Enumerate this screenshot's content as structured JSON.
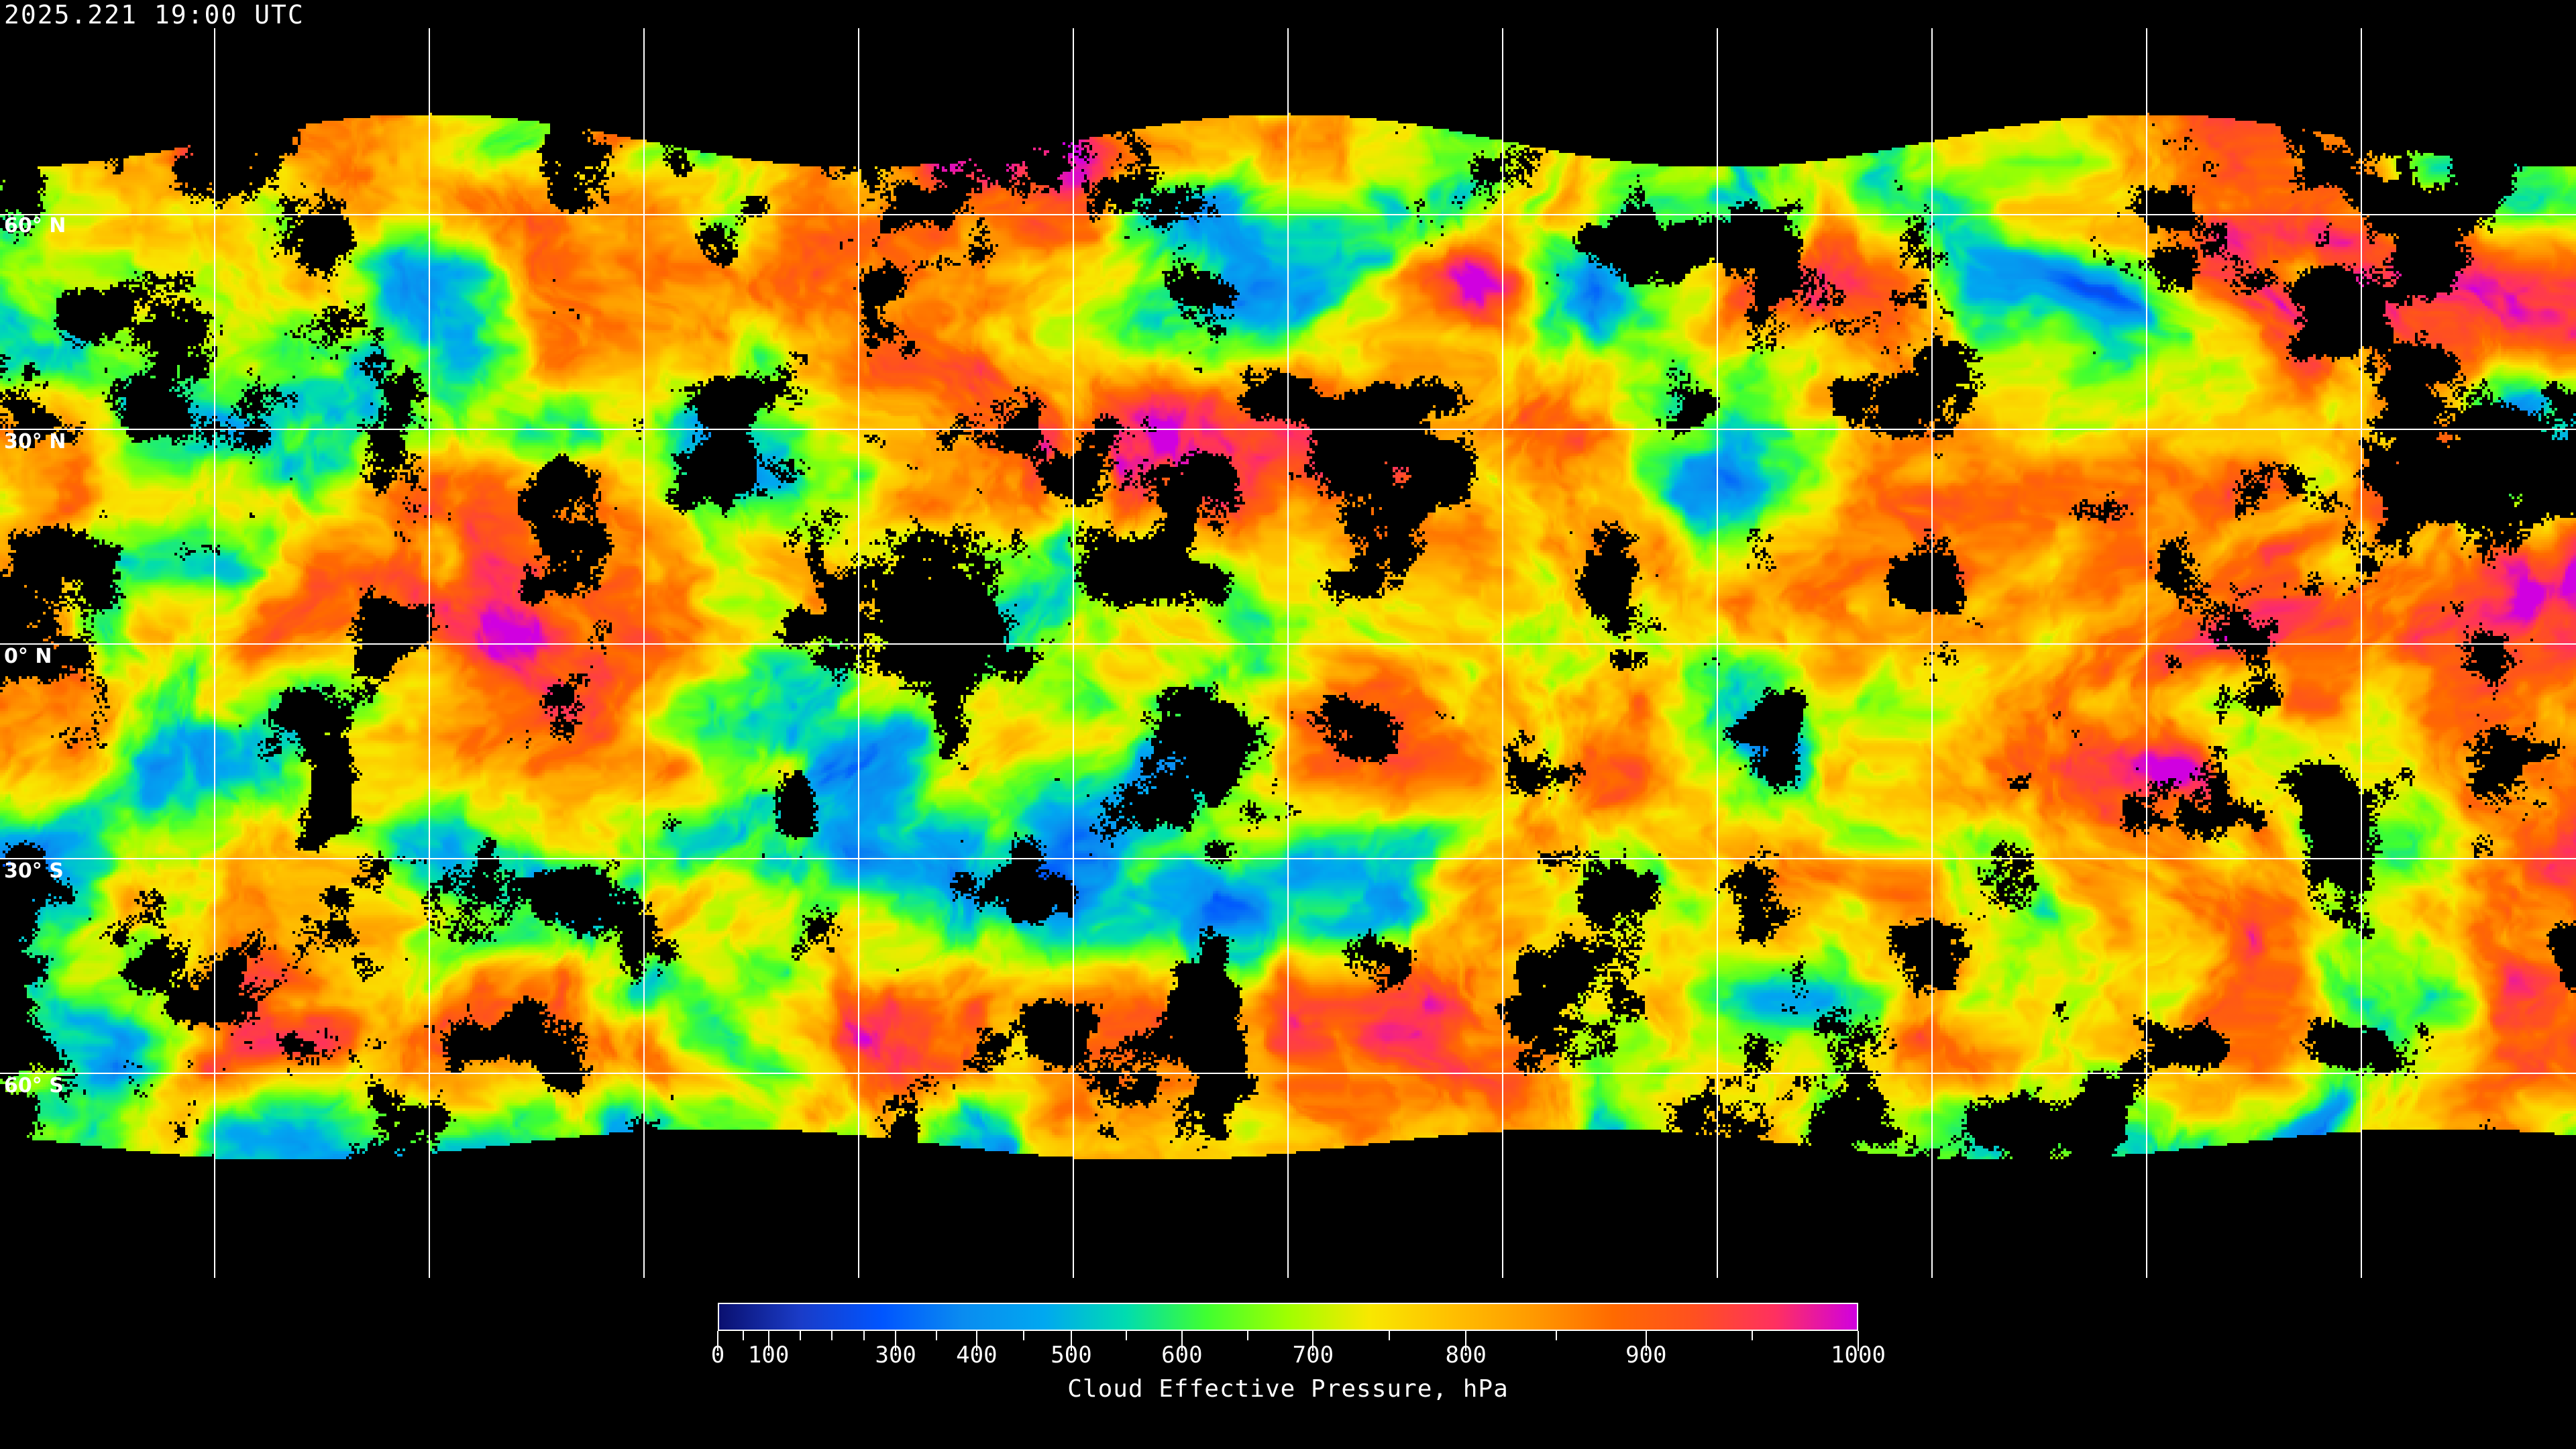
{
  "timestamp": "2025.221 19:00 UTC",
  "map": {
    "projection": "equirectangular",
    "graticule_spacing_deg": 30,
    "lat_labels": [
      "60° N",
      "30° N",
      "0° N",
      "30° S",
      "60° S"
    ],
    "lat_values": [
      60,
      30,
      0,
      -30,
      -60
    ],
    "no_data_color": "#000000",
    "grid_color": "#ffffff"
  },
  "colorbar": {
    "title": "Cloud Effective Pressure, hPa",
    "min": 0,
    "max": 1000,
    "tick_labels": [
      "0",
      "100",
      "300",
      "400",
      "500",
      "600",
      "700",
      "800",
      "900",
      "1000"
    ],
    "tick_values": [
      0,
      100,
      300,
      400,
      500,
      600,
      700,
      800,
      900,
      1000
    ],
    "minor_tick_values": [
      50,
      150,
      200,
      250,
      350,
      450,
      550,
      650,
      750,
      850,
      950
    ],
    "colors": [
      "#0a1070",
      "#1a3cc8",
      "#0055ff",
      "#0a8cf0",
      "#00a8f0",
      "#00dcb0",
      "#40ff30",
      "#a0ff00",
      "#f8e800",
      "#ffc000",
      "#ff9a00",
      "#ff6a00",
      "#ff5020",
      "#ff3060",
      "#d000e0"
    ]
  }
}
